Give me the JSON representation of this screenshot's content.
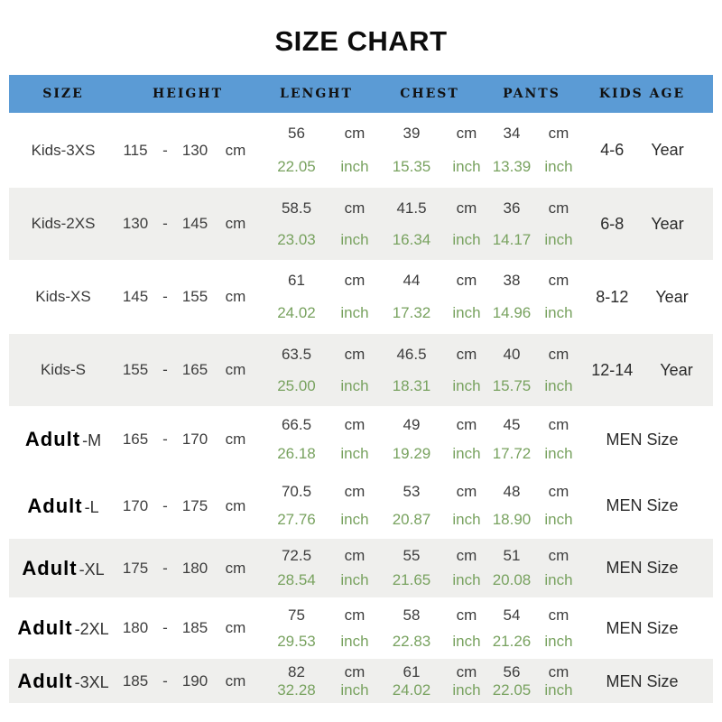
{
  "title": "SIZE CHART",
  "colors": {
    "header_bg": "#5b9bd5",
    "row_shaded_bg": "#efefed",
    "inch_text": "#78a25f",
    "cm_text": "#3d3d3d"
  },
  "units": {
    "cm": "cm",
    "inch": "inch"
  },
  "header": {
    "size": "SIZE",
    "height": "HEIGHT",
    "length": "LENGHT",
    "chest": "CHEST",
    "pants": "PANTS",
    "kids_age": "KIDS AGE"
  },
  "rows": [
    {
      "kind": "kids",
      "shaded": false,
      "label": "Kids-3XS",
      "suffix": "",
      "h_min": "115",
      "dash": "-",
      "h_max": "130",
      "len_cm": "56",
      "len_in": "22.05",
      "chest_cm": "39",
      "chest_in": "15.35",
      "pants_cm": "34",
      "pants_in": "13.39",
      "age": "4-6",
      "age_u": "Year"
    },
    {
      "kind": "kids",
      "shaded": true,
      "label": "Kids-2XS",
      "suffix": "",
      "h_min": "130",
      "dash": "-",
      "h_max": "145",
      "len_cm": "58.5",
      "len_in": "23.03",
      "chest_cm": "41.5",
      "chest_in": "16.34",
      "pants_cm": "36",
      "pants_in": "14.17",
      "age": "6-8",
      "age_u": "Year"
    },
    {
      "kind": "kids",
      "shaded": false,
      "label": "Kids-XS",
      "suffix": "",
      "h_min": "145",
      "dash": "-",
      "h_max": "155",
      "len_cm": "61",
      "len_in": "24.02",
      "chest_cm": "44",
      "chest_in": "17.32",
      "pants_cm": "38",
      "pants_in": "14.96",
      "age": "8-12",
      "age_u": "Year"
    },
    {
      "kind": "kids",
      "shaded": true,
      "label": "Kids-S",
      "suffix": "",
      "h_min": "155",
      "dash": "-",
      "h_max": "165",
      "len_cm": "63.5",
      "len_in": "25.00",
      "chest_cm": "46.5",
      "chest_in": "18.31",
      "pants_cm": "40",
      "pants_in": "15.75",
      "age": "12-14",
      "age_u": "Year"
    },
    {
      "kind": "adult",
      "shaded": false,
      "label": "Adult",
      "suffix": "-M",
      "h_min": "165",
      "dash": "-",
      "h_max": "170",
      "len_cm": "66.5",
      "len_in": "26.18",
      "chest_cm": "49",
      "chest_in": "19.29",
      "pants_cm": "45",
      "pants_in": "17.72",
      "age": "MEN Size",
      "age_u": ""
    },
    {
      "kind": "adult",
      "shaded": false,
      "label": "Adult",
      "suffix": "-L",
      "h_min": "170",
      "dash": "-",
      "h_max": "175",
      "len_cm": "70.5",
      "len_in": "27.76",
      "chest_cm": "53",
      "chest_in": "20.87",
      "pants_cm": "48",
      "pants_in": "18.90",
      "age": "MEN Size",
      "age_u": ""
    },
    {
      "kind": "adult",
      "shaded": true,
      "label": "Adult",
      "suffix": "-XL",
      "h_min": "175",
      "dash": "-",
      "h_max": "180",
      "len_cm": "72.5",
      "len_in": "28.54",
      "chest_cm": "55",
      "chest_in": "21.65",
      "pants_cm": "51",
      "pants_in": "20.08",
      "age": "MEN Size",
      "age_u": ""
    },
    {
      "kind": "adult",
      "shaded": false,
      "label": "Adult",
      "suffix": "-2XL",
      "h_min": "180",
      "dash": "-",
      "h_max": "185",
      "len_cm": "75",
      "len_in": "29.53",
      "chest_cm": "58",
      "chest_in": "22.83",
      "pants_cm": "54",
      "pants_in": "21.26",
      "age": "MEN Size",
      "age_u": ""
    },
    {
      "kind": "adult",
      "shaded": true,
      "label": "Adult",
      "suffix": "-3XL",
      "h_min": "185",
      "dash": "-",
      "h_max": "190",
      "len_cm": "82",
      "len_in": "32.28",
      "chest_cm": "61",
      "chest_in": "24.02",
      "pants_cm": "56",
      "pants_in": "22.05",
      "age": "MEN Size",
      "age_u": ""
    }
  ],
  "chart_data": {
    "type": "table",
    "title": "SIZE CHART",
    "columns": [
      "SIZE",
      "HEIGHT",
      "LENGHT",
      "CHEST",
      "PANTS",
      "KIDS AGE"
    ],
    "rows": [
      [
        "Kids-3XS",
        "115 - 130 cm",
        "56 cm / 22.05 inch",
        "39 cm / 15.35 inch",
        "34 cm / 13.39 inch",
        "4-6 Year"
      ],
      [
        "Kids-2XS",
        "130 - 145 cm",
        "58.5 cm / 23.03 inch",
        "41.5 cm / 16.34 inch",
        "36 cm / 14.17 inch",
        "6-8 Year"
      ],
      [
        "Kids-XS",
        "145 - 155 cm",
        "61 cm / 24.02 inch",
        "44 cm / 17.32 inch",
        "38 cm / 14.96 inch",
        "8-12 Year"
      ],
      [
        "Kids-S",
        "155 - 165 cm",
        "63.5 cm / 25.00 inch",
        "46.5 cm / 18.31 inch",
        "40 cm / 15.75 inch",
        "12-14 Year"
      ],
      [
        "Adult-M",
        "165 - 170 cm",
        "66.5 cm / 26.18 inch",
        "49 cm / 19.29 inch",
        "45 cm / 17.72 inch",
        "MEN Size"
      ],
      [
        "Adult-L",
        "170 - 175 cm",
        "70.5 cm / 27.76 inch",
        "53 cm / 20.87 inch",
        "48 cm / 18.90 inch",
        "MEN Size"
      ],
      [
        "Adult-XL",
        "175 - 180 cm",
        "72.5 cm / 28.54 inch",
        "55 cm / 21.65 inch",
        "51 cm / 20.08 inch",
        "MEN Size"
      ],
      [
        "Adult-2XL",
        "180 - 185 cm",
        "75 cm / 29.53 inch",
        "58 cm / 22.83 inch",
        "54 cm / 21.26 inch",
        "MEN Size"
      ],
      [
        "Adult-3XL",
        "185 - 190 cm",
        "82 cm / 32.28 inch",
        "61 cm / 24.02 inch",
        "56 cm / 22.05 inch",
        "MEN Size"
      ]
    ]
  }
}
